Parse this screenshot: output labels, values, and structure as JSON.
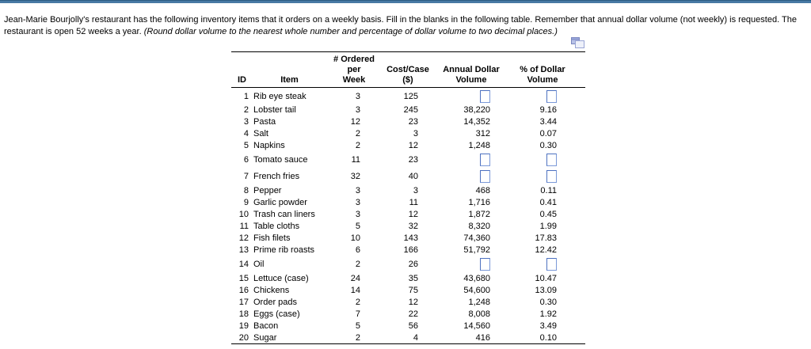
{
  "window": {
    "topbar_color": "#4879a4"
  },
  "intro": {
    "text": "Jean-Marie Bourjolly's restaurant has the following inventory items that it orders on a weekly basis. Fill in the blanks in the following table. Remember that annual dollar volume (not weekly) is requested. The restaurant is open 52 weeks a year. ",
    "note_italic": "(Round dollar volume to the nearest whole number and percentage of dollar volume to two decimal places.)"
  },
  "icons": {
    "popout": "overlapping-windows-icon"
  },
  "accent": {
    "input_border": "#4d71c0"
  },
  "table": {
    "headers": [
      {
        "l1": "",
        "l2": "ID"
      },
      {
        "l1": "",
        "l2": "Item"
      },
      {
        "l1": "# Ordered per",
        "l2": "Week"
      },
      {
        "l1": "Cost/Case",
        "l2": "($)"
      },
      {
        "l1": "Annual Dollar",
        "l2": "Volume"
      },
      {
        "l1": "% of Dollar",
        "l2": "Volume"
      }
    ],
    "rows": [
      {
        "id": "1",
        "item": "Rib eye steak",
        "week": "3",
        "cost": "125",
        "annual": "",
        "pct": "",
        "blank": true
      },
      {
        "id": "2",
        "item": "Lobster tail",
        "week": "3",
        "cost": "245",
        "annual": "38,220",
        "pct": "9.16",
        "blank": false
      },
      {
        "id": "3",
        "item": "Pasta",
        "week": "12",
        "cost": "23",
        "annual": "14,352",
        "pct": "3.44",
        "blank": false
      },
      {
        "id": "4",
        "item": "Salt",
        "week": "2",
        "cost": "3",
        "annual": "312",
        "pct": "0.07",
        "blank": false
      },
      {
        "id": "5",
        "item": "Napkins",
        "week": "2",
        "cost": "12",
        "annual": "1,248",
        "pct": "0.30",
        "blank": false
      },
      {
        "id": "6",
        "item": "Tomato sauce",
        "week": "11",
        "cost": "23",
        "annual": "",
        "pct": "",
        "blank": true
      },
      {
        "id": "7",
        "item": "French fries",
        "week": "32",
        "cost": "40",
        "annual": "",
        "pct": "",
        "blank": true
      },
      {
        "id": "8",
        "item": "Pepper",
        "week": "3",
        "cost": "3",
        "annual": "468",
        "pct": "0.11",
        "blank": false
      },
      {
        "id": "9",
        "item": "Garlic powder",
        "week": "3",
        "cost": "11",
        "annual": "1,716",
        "pct": "0.41",
        "blank": false
      },
      {
        "id": "10",
        "item": "Trash can liners",
        "week": "3",
        "cost": "12",
        "annual": "1,872",
        "pct": "0.45",
        "blank": false
      },
      {
        "id": "11",
        "item": "Table cloths",
        "week": "5",
        "cost": "32",
        "annual": "8,320",
        "pct": "1.99",
        "blank": false
      },
      {
        "id": "12",
        "item": "Fish filets",
        "week": "10",
        "cost": "143",
        "annual": "74,360",
        "pct": "17.83",
        "blank": false
      },
      {
        "id": "13",
        "item": "Prime rib roasts",
        "week": "6",
        "cost": "166",
        "annual": "51,792",
        "pct": "12.42",
        "blank": false
      },
      {
        "id": "14",
        "item": "Oil",
        "week": "2",
        "cost": "26",
        "annual": "",
        "pct": "",
        "blank": true
      },
      {
        "id": "15",
        "item": "Lettuce (case)",
        "week": "24",
        "cost": "35",
        "annual": "43,680",
        "pct": "10.47",
        "blank": false
      },
      {
        "id": "16",
        "item": "Chickens",
        "week": "14",
        "cost": "75",
        "annual": "54,600",
        "pct": "13.09",
        "blank": false
      },
      {
        "id": "17",
        "item": "Order pads",
        "week": "2",
        "cost": "12",
        "annual": "1,248",
        "pct": "0.30",
        "blank": false
      },
      {
        "id": "18",
        "item": "Eggs (case)",
        "week": "7",
        "cost": "22",
        "annual": "8,008",
        "pct": "1.92",
        "blank": false
      },
      {
        "id": "19",
        "item": "Bacon",
        "week": "5",
        "cost": "56",
        "annual": "14,560",
        "pct": "3.49",
        "blank": false
      },
      {
        "id": "20",
        "item": "Sugar",
        "week": "2",
        "cost": "4",
        "annual": "416",
        "pct": "0.10",
        "blank": false
      }
    ]
  }
}
